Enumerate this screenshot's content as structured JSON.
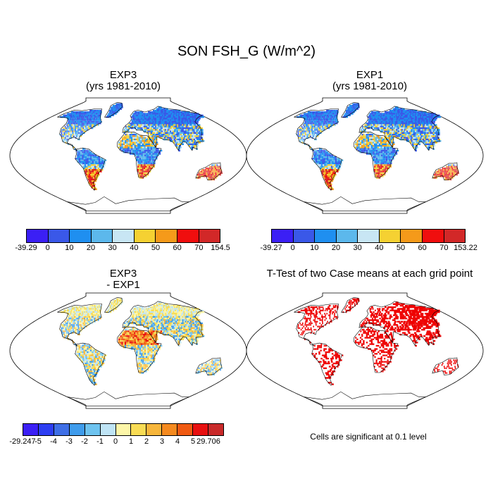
{
  "figure": {
    "main_title": "SON FSH_G (W/m^2)",
    "note": "Cells are significant at 0.1 level"
  },
  "panels": [
    {
      "id": "exp3",
      "title_line1": "EXP3",
      "title_line2": "(yrs 1981-2010)",
      "colorbar": {
        "labels": [
          "-39.29",
          "0",
          "10",
          "20",
          "30",
          "40",
          "50",
          "60",
          "70",
          "154.5"
        ],
        "colors": [
          "#3b1ff5",
          "#3a58e8",
          "#1f8ff0",
          "#5cb8ec",
          "#c8e6f4",
          "#f5d132",
          "#f59a1a",
          "#f00e0e",
          "#d22828"
        ]
      }
    },
    {
      "id": "exp1",
      "title_line1": "EXP1",
      "title_line2": "(yrs 1981-2010)",
      "colorbar": {
        "labels": [
          "-39.27",
          "0",
          "10",
          "20",
          "30",
          "40",
          "50",
          "60",
          "70",
          "153.22"
        ],
        "colors": [
          "#3b1ff5",
          "#3a58e8",
          "#1f8ff0",
          "#5cb8ec",
          "#c8e6f4",
          "#f5d132",
          "#f59a1a",
          "#f00e0e",
          "#d22828"
        ]
      }
    },
    {
      "id": "diff",
      "title_line1": "EXP3",
      "title_line2": "- EXP1",
      "colorbar": {
        "labels": [
          "-29.247",
          "-5",
          "-4",
          "-3",
          "-2",
          "-1",
          "0",
          "1",
          "2",
          "3",
          "4",
          "5",
          "29.706"
        ],
        "colors": [
          "#3b1ff5",
          "#2d3ef2",
          "#3f6fe6",
          "#3f9cec",
          "#6ec3ef",
          "#bfe4f5",
          "#fdf6a8",
          "#f8dc55",
          "#f7b63b",
          "#f58a1f",
          "#f05a12",
          "#e81010",
          "#c92a2a"
        ]
      }
    },
    {
      "id": "ttest",
      "title_line1": "T-Test of two Case means at each grid point",
      "significant_color": "#ee0000"
    }
  ]
}
